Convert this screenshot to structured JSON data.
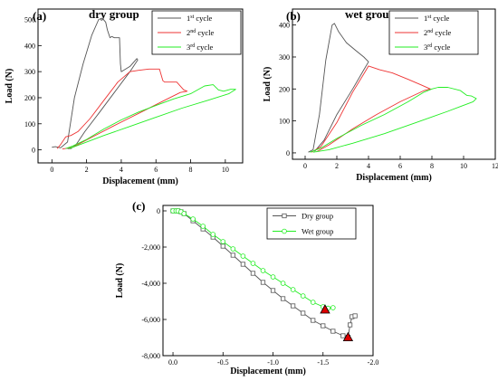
{
  "chart_data": [
    {
      "panel": "(a)",
      "type": "line",
      "title": "dry group",
      "xlabel": "Displacement (mm)",
      "ylabel": "Load (N)",
      "xlim": [
        -0.8,
        11
      ],
      "ylim": [
        -50,
        540
      ],
      "xticks": [
        "0",
        "2",
        "4",
        "6",
        "8",
        "10"
      ],
      "yticks": [
        "0",
        "100",
        "200",
        "300",
        "400",
        "500"
      ],
      "legend_position": "top-right",
      "series": [
        {
          "name": "1st cycle",
          "base": "1",
          "sup": "st",
          "suffix": " cycle",
          "color": "#555555",
          "x": [
            0,
            0.2,
            0.5,
            0.9,
            1.3,
            1.8,
            2.3,
            2.7,
            2.9,
            3.1,
            3.2,
            3.35,
            3.45,
            3.6,
            3.9,
            3.95,
            4.0,
            4.5,
            4.9,
            4.95,
            4.5,
            3.6,
            2.7,
            1.9,
            1.4,
            1.1,
            0.9
          ],
          "y": [
            10,
            12,
            8,
            30,
            200,
            330,
            440,
            500,
            505,
            490,
            460,
            430,
            435,
            430,
            430,
            330,
            300,
            320,
            350,
            345,
            300,
            220,
            140,
            70,
            20,
            5,
            5
          ]
        },
        {
          "name": "2nd cycle",
          "base": "2",
          "sup": "nd",
          "suffix": " cycle",
          "color": "#ee3333",
          "x": [
            0.3,
            0.5,
            0.8,
            1.1,
            1.5,
            2.2,
            3.0,
            3.8,
            4.5,
            5.0,
            5.6,
            6.2,
            6.4,
            6.5,
            7.2,
            7.6,
            7.8,
            7.4,
            6.5,
            5.0,
            3.5,
            2.2,
            1.2,
            0.6
          ],
          "y": [
            5,
            20,
            50,
            55,
            70,
            120,
            190,
            260,
            300,
            305,
            310,
            310,
            265,
            260,
            260,
            230,
            225,
            220,
            190,
            140,
            90,
            45,
            10,
            3
          ]
        },
        {
          "name": "3rd cycle",
          "base": "3",
          "sup": "rd",
          "suffix": " cycle",
          "color": "#22ee22",
          "x": [
            0.8,
            1.2,
            2.0,
            3.0,
            4.0,
            5.0,
            6.0,
            7.0,
            8.0,
            8.8,
            9.3,
            9.6,
            9.9,
            10.3,
            10.6,
            10.2,
            9.0,
            7.5,
            6.0,
            4.5,
            3.0,
            1.8,
            1.0
          ],
          "y": [
            5,
            15,
            40,
            80,
            115,
            145,
            170,
            195,
            215,
            245,
            250,
            230,
            225,
            232,
            232,
            215,
            190,
            160,
            125,
            90,
            55,
            25,
            5
          ]
        }
      ]
    },
    {
      "panel": "(b)",
      "type": "line",
      "title": "wet group",
      "xlabel": "Displacement (mm)",
      "ylabel": "Load (N)",
      "xlim": [
        -0.8,
        12
      ],
      "ylim": [
        -20,
        450
      ],
      "xticks": [
        "0",
        "2",
        "4",
        "6",
        "8",
        "10",
        "12"
      ],
      "yticks": [
        "0",
        "100",
        "200",
        "300",
        "400"
      ],
      "legend_position": "top-right",
      "series": [
        {
          "name": "1st cycle",
          "base": "1",
          "sup": "st",
          "suffix": " cycle",
          "color": "#555555",
          "x": [
            0.2,
            0.5,
            0.9,
            1.3,
            1.7,
            1.85,
            2.1,
            2.6,
            3.2,
            3.7,
            4.0,
            3.7,
            3.0,
            2.0,
            1.2,
            0.6
          ],
          "y": [
            2,
            10,
            120,
            290,
            400,
            405,
            380,
            345,
            320,
            300,
            285,
            260,
            200,
            120,
            40,
            5
          ]
        },
        {
          "name": "2nd cycle",
          "base": "2",
          "sup": "nd",
          "suffix": " cycle",
          "color": "#ee3333",
          "x": [
            0.4,
            1.0,
            2.0,
            3.0,
            3.8,
            4.0,
            4.7,
            5.5,
            6.5,
            7.3,
            7.9,
            7.5,
            6.0,
            4.5,
            3.0,
            1.5,
            0.7
          ],
          "y": [
            2,
            20,
            95,
            190,
            255,
            272,
            260,
            250,
            230,
            213,
            200,
            195,
            160,
            120,
            75,
            25,
            3
          ]
        },
        {
          "name": "3rd cycle",
          "base": "3",
          "sup": "rd",
          "suffix": " cycle",
          "color": "#22ee22",
          "x": [
            0.3,
            1.0,
            2.0,
            3.5,
            5.0,
            6.5,
            7.5,
            8.0,
            8.4,
            9.0,
            9.8,
            10.2,
            10.5,
            10.8,
            10.6,
            9.0,
            7.0,
            5.0,
            3.0,
            1.5,
            0.5
          ],
          "y": [
            2,
            15,
            45,
            85,
            120,
            160,
            190,
            200,
            205,
            205,
            195,
            180,
            178,
            170,
            160,
            130,
            95,
            60,
            30,
            10,
            2
          ]
        }
      ]
    },
    {
      "panel": "(c)",
      "type": "line",
      "xlabel": "Displacement (mm)",
      "ylabel": "Load (N)",
      "xlim": [
        0.1,
        -2.0
      ],
      "ylim": [
        -8000,
        300
      ],
      "xticks": [
        "0.0",
        "-0.5",
        "-1.0",
        "-1.5",
        "-2.0"
      ],
      "yticks": [
        "0",
        "-2,000",
        "-4,000",
        "-6,000",
        "-8,000"
      ],
      "legend_position": "top-right",
      "series": [
        {
          "name": "Dry group",
          "color": "#555555",
          "marker": "square",
          "x": [
            0,
            -0.03,
            -0.05,
            -0.08,
            -0.11,
            -0.2,
            -0.3,
            -0.4,
            -0.5,
            -0.6,
            -0.7,
            -0.8,
            -0.9,
            -1.0,
            -1.1,
            -1.2,
            -1.3,
            -1.4,
            -1.5,
            -1.6,
            -1.7,
            -1.75,
            -1.77,
            -1.79,
            -1.82
          ],
          "y": [
            0,
            0,
            0,
            -50,
            -150,
            -550,
            -1000,
            -1450,
            -1950,
            -2450,
            -2950,
            -3450,
            -3950,
            -4400,
            -4850,
            -5250,
            -5650,
            -6050,
            -6350,
            -6650,
            -6900,
            -6980,
            -6300,
            -5850,
            -5800
          ]
        },
        {
          "name": "Wet group",
          "color": "#22ee22",
          "marker": "circle",
          "x": [
            0,
            -0.03,
            -0.05,
            -0.08,
            -0.11,
            -0.2,
            -0.3,
            -0.4,
            -0.5,
            -0.6,
            -0.7,
            -0.8,
            -0.9,
            -1.0,
            -1.1,
            -1.2,
            -1.3,
            -1.4,
            -1.5,
            -1.52,
            -1.55,
            -1.6
          ],
          "y": [
            0,
            0,
            0,
            -50,
            -150,
            -450,
            -850,
            -1300,
            -1700,
            -2100,
            -2500,
            -2900,
            -3300,
            -3650,
            -4000,
            -4350,
            -4700,
            -5050,
            -5300,
            -5450,
            -5380,
            -5350
          ]
        }
      ],
      "failure_points": [
        {
          "x": -1.52,
          "y": -5450,
          "color": "#dd0000"
        },
        {
          "x": -1.75,
          "y": -6980,
          "color": "#dd0000"
        }
      ]
    }
  ]
}
